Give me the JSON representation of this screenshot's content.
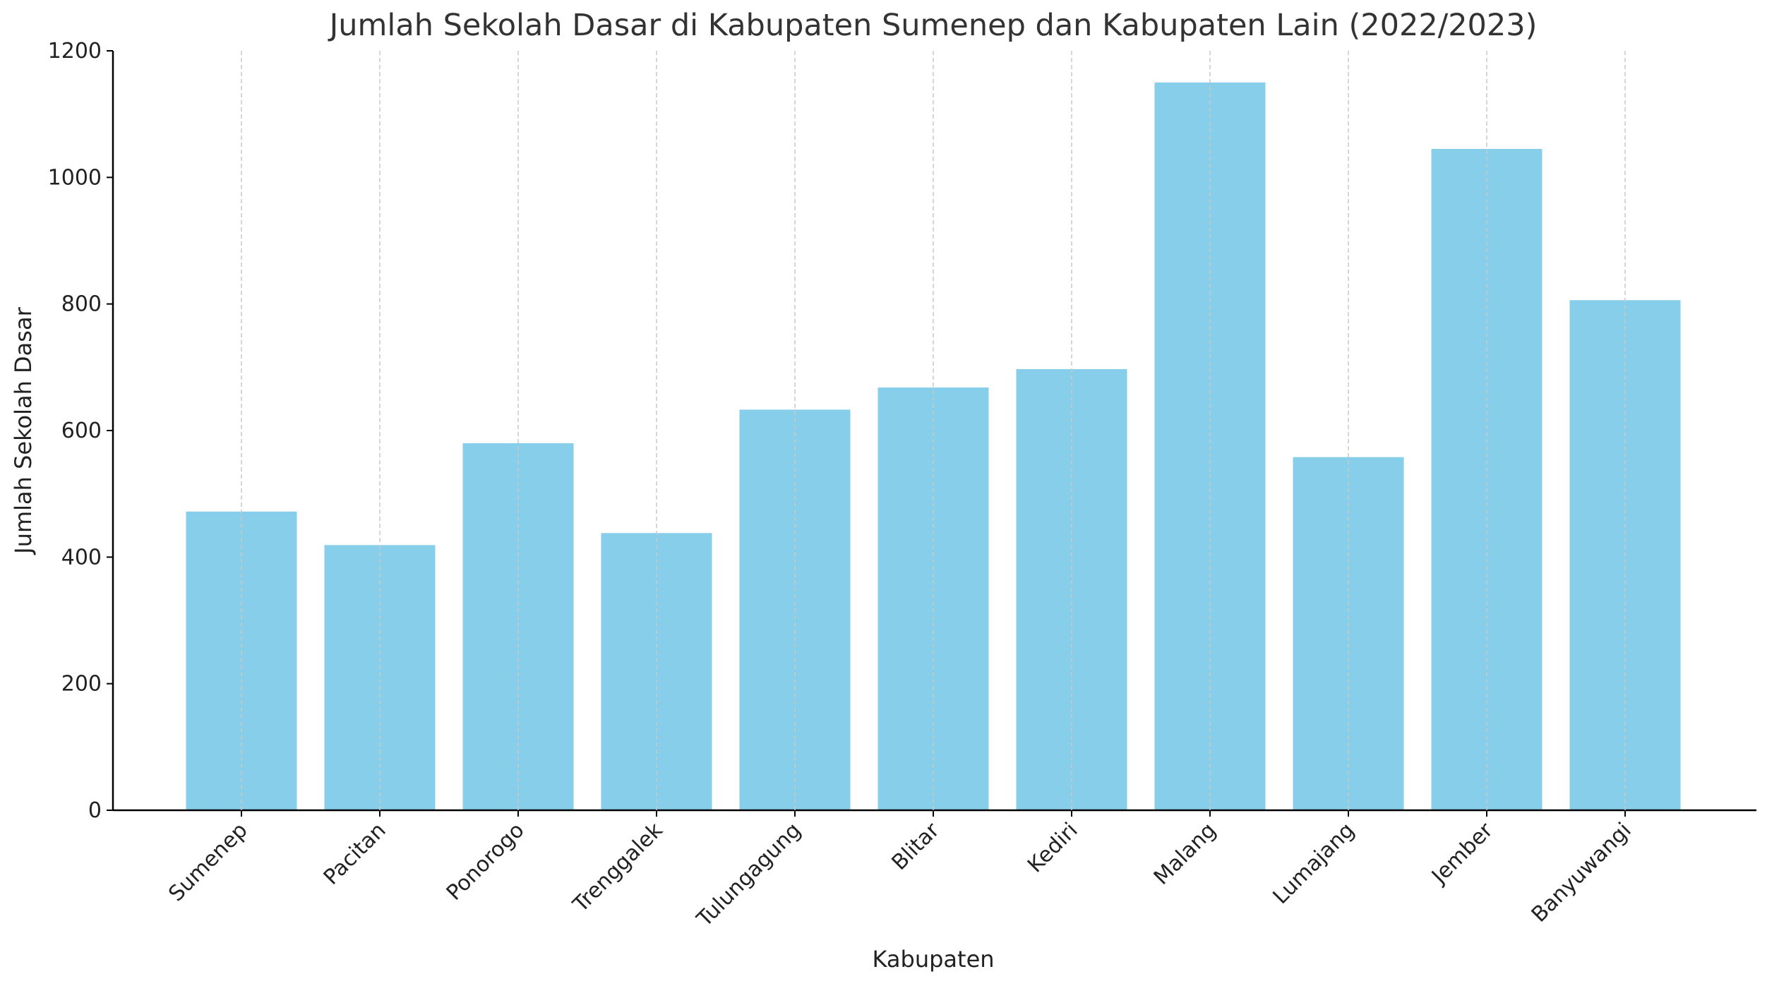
{
  "chart_data": {
    "type": "bar",
    "title": "Jumlah Sekolah Dasar di Kabupaten Sumenep dan Kabupaten Lain (2022/2023)",
    "xlabel": "Kabupaten",
    "ylabel": "Jumlah Sekolah Dasar",
    "categories": [
      "Sumenep",
      "Pacitan",
      "Ponorogo",
      "Trenggalek",
      "Tulungagung",
      "Blitar",
      "Kediri",
      "Malang",
      "Lumajang",
      "Jember",
      "Banyuwangi"
    ],
    "values": [
      472,
      419,
      580,
      438,
      633,
      668,
      697,
      1150,
      558,
      1045,
      806
    ],
    "ylim": [
      0,
      1200
    ],
    "yticks": [
      0,
      200,
      400,
      600,
      800,
      1000,
      1200
    ],
    "grid": "vertical dashed",
    "colors": {
      "bar": "#87CEEB"
    }
  }
}
